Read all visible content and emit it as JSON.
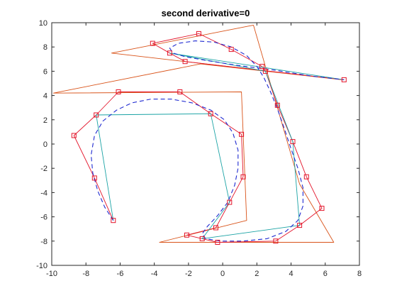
{
  "chart_data": {
    "type": "line",
    "title": "second derivative=0",
    "xlabel": "",
    "ylabel": "",
    "xlim": [
      -10,
      8
    ],
    "ylim": [
      -10,
      10
    ],
    "grid": false,
    "legend": "none",
    "xticks": [
      -10,
      -8,
      -6,
      -4,
      -2,
      0,
      2,
      4,
      6,
      8
    ],
    "yticks": [
      -10,
      -8,
      -6,
      -4,
      -2,
      0,
      2,
      4,
      6,
      8,
      10
    ],
    "series": [
      {
        "style": "orange-polyline",
        "color": "#d95319",
        "points": [
          [
            1.8,
            9.8
          ],
          [
            -6.5,
            7.5
          ],
          [
            7,
            5.3
          ],
          [
            -1.3,
            6.6
          ],
          [
            -9.9,
            4.2
          ],
          [
            1.1,
            4.3
          ],
          [
            1.4,
            -6.3
          ],
          [
            -3.7,
            -8.1
          ],
          [
            6.5,
            -8.1
          ],
          [
            4.5,
            -3.3
          ],
          [
            1.8,
            9.8
          ]
        ]
      },
      {
        "style": "red-control-polygon-square-markers",
        "color": "#e3142a",
        "points": [
          [
            -6.4,
            -6.3
          ],
          [
            -7.5,
            -2.8
          ],
          [
            -8.7,
            0.7
          ],
          [
            -7.4,
            2.4
          ],
          [
            -6.1,
            4.3
          ],
          [
            -2.5,
            4.3
          ],
          [
            -0.7,
            2.5
          ],
          [
            1.1,
            0.8
          ],
          [
            1.2,
            -2.7
          ],
          [
            0.4,
            -4.8
          ],
          [
            -0.4,
            -6.9
          ],
          [
            -2.1,
            -7.5
          ],
          [
            -1.2,
            -7.8
          ],
          [
            -0.3,
            -8.1
          ],
          [
            3.1,
            -8.0
          ],
          [
            4.5,
            -6.7
          ],
          [
            5.8,
            -5.3
          ],
          [
            4.9,
            -2.7
          ],
          [
            4.1,
            0.2
          ],
          [
            3.2,
            3.2
          ],
          [
            2.5,
            6.0
          ],
          [
            2.3,
            6.4
          ],
          [
            0.5,
            7.8
          ],
          [
            -1.4,
            9.1
          ],
          [
            -4.1,
            8.3
          ],
          [
            -3.1,
            7.5
          ],
          [
            -2.2,
            6.8
          ],
          [
            7.1,
            5.3
          ]
        ]
      },
      {
        "style": "teal-tangent-chords",
        "color": "#1ba3a5",
        "points": [
          [
            -6.4,
            -6.3
          ],
          [
            -7.4,
            2.4
          ],
          [
            -0.7,
            2.5
          ],
          [
            0.4,
            -4.8
          ],
          [
            -1.2,
            -7.8
          ],
          [
            4.5,
            -6.7
          ],
          [
            4.1,
            0.2
          ],
          [
            2.5,
            6.0
          ],
          [
            -3.1,
            7.5
          ],
          [
            7.1,
            5.3
          ]
        ]
      },
      {
        "style": "blue-dashed-curve",
        "color": "#1f2ad1",
        "points": [
          [
            -6.4,
            -6.3
          ],
          [
            -6.9,
            -5.2
          ],
          [
            -7.3,
            -3.9
          ],
          [
            -7.6,
            -2.4
          ],
          [
            -7.7,
            -0.9
          ],
          [
            -7.5,
            0.7
          ],
          [
            -7.0,
            1.9
          ],
          [
            -6.2,
            2.8
          ],
          [
            -5.3,
            3.4
          ],
          [
            -4.2,
            3.7
          ],
          [
            -3.0,
            3.7
          ],
          [
            -1.8,
            3.4
          ],
          [
            -0.7,
            2.8
          ],
          [
            0.1,
            2.0
          ],
          [
            0.6,
            0.9
          ],
          [
            0.9,
            -0.5
          ],
          [
            0.9,
            -2.0
          ],
          [
            0.7,
            -3.4
          ],
          [
            0.3,
            -4.8
          ],
          [
            -0.3,
            -5.9
          ],
          [
            -0.9,
            -6.8
          ],
          [
            -1.2,
            -7.4
          ],
          [
            -1.0,
            -7.8
          ],
          [
            -0.1,
            -8.0
          ],
          [
            1.2,
            -8.0
          ],
          [
            2.6,
            -7.8
          ],
          [
            3.7,
            -7.2
          ],
          [
            4.4,
            -6.3
          ],
          [
            4.7,
            -5.1
          ],
          [
            4.7,
            -3.6
          ],
          [
            4.4,
            -2.0
          ],
          [
            4.0,
            -0.4
          ],
          [
            3.6,
            1.3
          ],
          [
            3.2,
            2.9
          ],
          [
            2.8,
            4.3
          ],
          [
            2.4,
            5.5
          ],
          [
            2.0,
            6.4
          ],
          [
            1.4,
            7.3
          ],
          [
            0.5,
            8.0
          ],
          [
            -0.5,
            8.4
          ],
          [
            -1.6,
            8.5
          ],
          [
            -2.6,
            8.3
          ],
          [
            -3.1,
            7.9
          ],
          [
            -2.9,
            7.5
          ],
          [
            -2.2,
            7.2
          ],
          [
            -1.0,
            6.9
          ],
          [
            0.8,
            6.5
          ],
          [
            3.0,
            6.1
          ],
          [
            5.2,
            5.6
          ],
          [
            7.1,
            5.3
          ]
        ]
      }
    ]
  }
}
